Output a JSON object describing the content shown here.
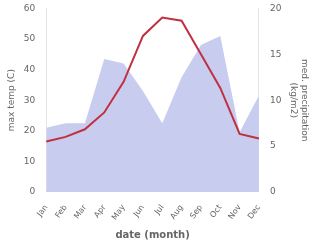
{
  "chart_data": {
    "type": "line",
    "xlabel": "date (month)",
    "ylabel": "max temp (C)",
    "y2label": "med. precipitation\n(kg/m2)",
    "categories": [
      "Jan",
      "Feb",
      "Mar",
      "Apr",
      "May",
      "Jun",
      "Jul",
      "Aug",
      "Sep",
      "Oct",
      "Nov",
      "Dec"
    ],
    "series": [
      {
        "type": "area",
        "axis": "y2",
        "color": "#c8ccee",
        "values": [
          7.0,
          7.5,
          7.5,
          14.5,
          14.0,
          11.0,
          7.5,
          12.5,
          16.0,
          17.0,
          6.5,
          10.5
        ]
      },
      {
        "type": "line",
        "color": "#c03040",
        "values": [
          16.5,
          18.0,
          20.5,
          26.0,
          36.0,
          51.0,
          57.0,
          56.0,
          45.0,
          34.0,
          19.0,
          17.5
        ]
      }
    ],
    "ylim": [
      0,
      60
    ],
    "yticks": [
      0,
      10,
      20,
      30,
      40,
      50,
      60
    ],
    "y2lim": [
      0,
      20
    ],
    "y2ticks": [
      0,
      5,
      10,
      15,
      20
    ],
    "grid": false
  }
}
